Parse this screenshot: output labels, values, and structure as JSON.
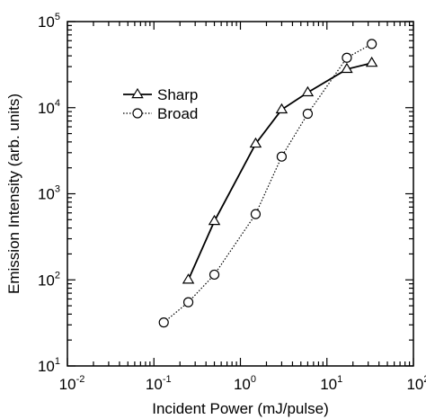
{
  "chart_data": {
    "type": "line",
    "x_scale": "log",
    "y_scale": "log",
    "xlabel": "Incident Power (mJ/pulse)",
    "ylabel": "Emission Intensity (arb. units)",
    "xlim": [
      0.01,
      100
    ],
    "ylim": [
      10,
      100000
    ],
    "x_ticks": [
      {
        "base": "10",
        "exp": "-2"
      },
      {
        "base": "10",
        "exp": "-1"
      },
      {
        "base": "10",
        "exp": "0"
      },
      {
        "base": "10",
        "exp": "1"
      },
      {
        "base": "10",
        "exp": "2"
      }
    ],
    "y_ticks": [
      {
        "base": "10",
        "exp": "1"
      },
      {
        "base": "10",
        "exp": "2"
      },
      {
        "base": "10",
        "exp": "3"
      },
      {
        "base": "10",
        "exp": "4"
      },
      {
        "base": "10",
        "exp": "5"
      }
    ],
    "grid": false,
    "legend_position": "upper-left",
    "series": [
      {
        "name": "Sharp",
        "marker": "triangle",
        "line_style": "solid",
        "x": [
          0.25,
          0.5,
          1.5,
          3.0,
          6.0,
          17,
          33
        ],
        "y": [
          100,
          480,
          3800,
          9500,
          15000,
          28000,
          33000
        ]
      },
      {
        "name": "Broad",
        "marker": "circle",
        "line_style": "dotted",
        "x": [
          0.13,
          0.25,
          0.5,
          1.5,
          3.0,
          6.0,
          17,
          33
        ],
        "y": [
          32,
          55,
          115,
          580,
          2700,
          8500,
          38000,
          55000
        ]
      }
    ]
  }
}
